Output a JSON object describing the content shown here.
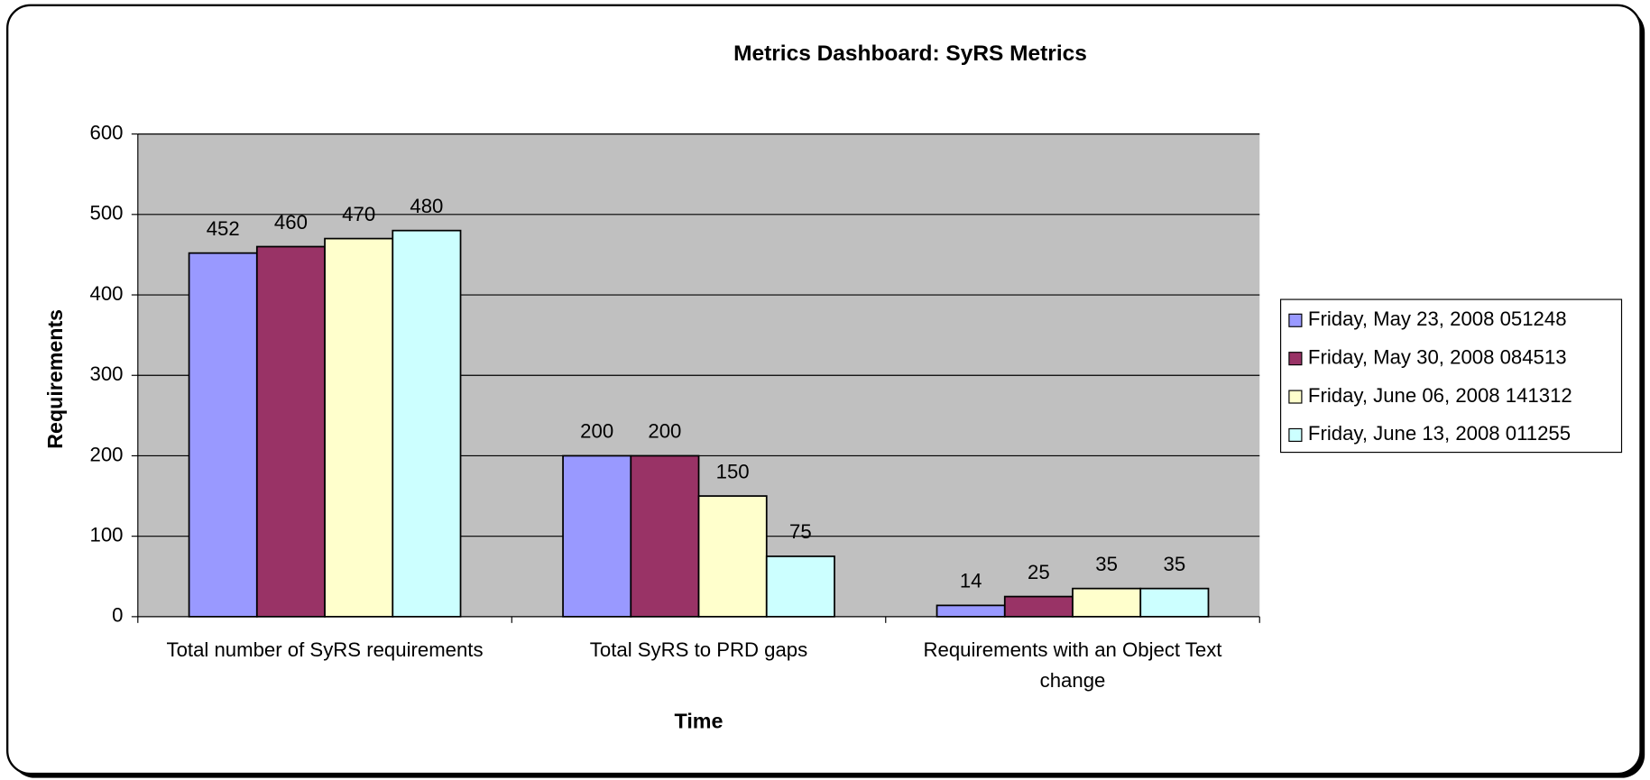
{
  "chart_data": {
    "type": "bar",
    "title": "Metrics Dashboard: SyRS Metrics",
    "x_label": "Time",
    "y_label": "Requirements",
    "categories": [
      "Total number of SyRS requirements",
      "Total SyRS to PRD gaps",
      "Requirements with an Object Text change"
    ],
    "series": [
      {
        "name": "Friday, May 23, 2008 051248",
        "color": "#9999ff",
        "values": [
          452,
          200,
          14
        ]
      },
      {
        "name": "Friday, May 30, 2008 084513",
        "color": "#993366",
        "values": [
          460,
          200,
          25
        ]
      },
      {
        "name": "Friday, June 06, 2008 141312",
        "color": "#ffffcc",
        "values": [
          470,
          150,
          35
        ]
      },
      {
        "name": "Friday, June 13, 2008 011255",
        "color": "#ccffff",
        "values": [
          480,
          75,
          35
        ]
      }
    ],
    "ylim": [
      0,
      600
    ],
    "yticks": [
      0,
      100,
      200,
      300,
      400,
      500,
      600
    ],
    "grid": true,
    "legend": "right"
  }
}
